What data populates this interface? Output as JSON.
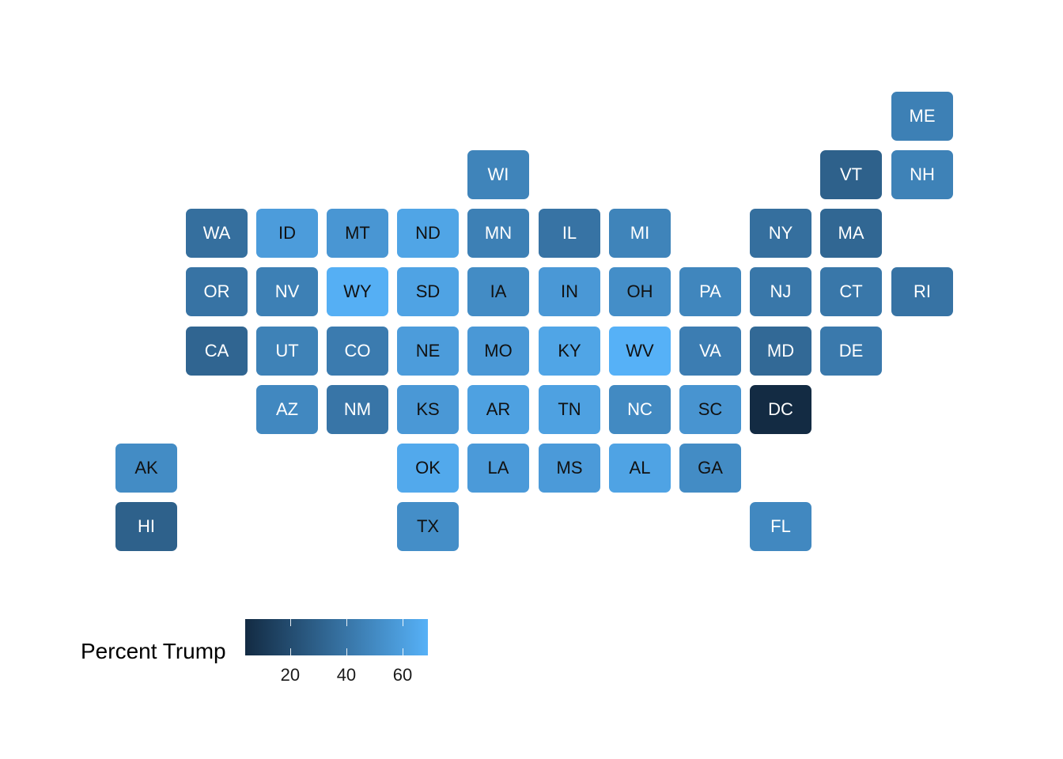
{
  "legend": {
    "title": "Percent Trump",
    "ticks": [
      20,
      40,
      60
    ],
    "range": [
      4,
      69
    ],
    "low_color": "#132B43",
    "high_color": "#56B1F7"
  },
  "chart_data": {
    "type": "heatmap",
    "title": "",
    "fill_label": "Percent Trump",
    "tiles": [
      {
        "state": "ME",
        "pct": 45
      },
      {
        "state": "WI",
        "pct": 47
      },
      {
        "state": "VT",
        "pct": 30
      },
      {
        "state": "NH",
        "pct": 46
      },
      {
        "state": "WA",
        "pct": 37
      },
      {
        "state": "ID",
        "pct": 59
      },
      {
        "state": "MT",
        "pct": 56
      },
      {
        "state": "ND",
        "pct": 63
      },
      {
        "state": "MN",
        "pct": 45
      },
      {
        "state": "IL",
        "pct": 39
      },
      {
        "state": "MI",
        "pct": 47
      },
      {
        "state": "NY",
        "pct": 37
      },
      {
        "state": "MA",
        "pct": 33
      },
      {
        "state": "OR",
        "pct": 39
      },
      {
        "state": "NV",
        "pct": 45
      },
      {
        "state": "WY",
        "pct": 68
      },
      {
        "state": "SD",
        "pct": 62
      },
      {
        "state": "IA",
        "pct": 51
      },
      {
        "state": "IN",
        "pct": 57
      },
      {
        "state": "OH",
        "pct": 52
      },
      {
        "state": "PA",
        "pct": 48
      },
      {
        "state": "NJ",
        "pct": 41
      },
      {
        "state": "CT",
        "pct": 41
      },
      {
        "state": "RI",
        "pct": 39
      },
      {
        "state": "CA",
        "pct": 32
      },
      {
        "state": "UT",
        "pct": 46
      },
      {
        "state": "CO",
        "pct": 43
      },
      {
        "state": "NE",
        "pct": 59
      },
      {
        "state": "MO",
        "pct": 57
      },
      {
        "state": "KY",
        "pct": 63
      },
      {
        "state": "WV",
        "pct": 69
      },
      {
        "state": "VA",
        "pct": 44
      },
      {
        "state": "MD",
        "pct": 34
      },
      {
        "state": "DE",
        "pct": 42
      },
      {
        "state": "AZ",
        "pct": 49
      },
      {
        "state": "NM",
        "pct": 40
      },
      {
        "state": "KS",
        "pct": 57
      },
      {
        "state": "AR",
        "pct": 61
      },
      {
        "state": "TN",
        "pct": 61
      },
      {
        "state": "NC",
        "pct": 50
      },
      {
        "state": "SC",
        "pct": 55
      },
      {
        "state": "DC",
        "pct": 4
      },
      {
        "state": "AK",
        "pct": 51
      },
      {
        "state": "OK",
        "pct": 65
      },
      {
        "state": "LA",
        "pct": 58
      },
      {
        "state": "MS",
        "pct": 58
      },
      {
        "state": "AL",
        "pct": 62
      },
      {
        "state": "GA",
        "pct": 51
      },
      {
        "state": "HI",
        "pct": 30
      },
      {
        "state": "TX",
        "pct": 52
      },
      {
        "state": "FL",
        "pct": 49
      }
    ]
  }
}
